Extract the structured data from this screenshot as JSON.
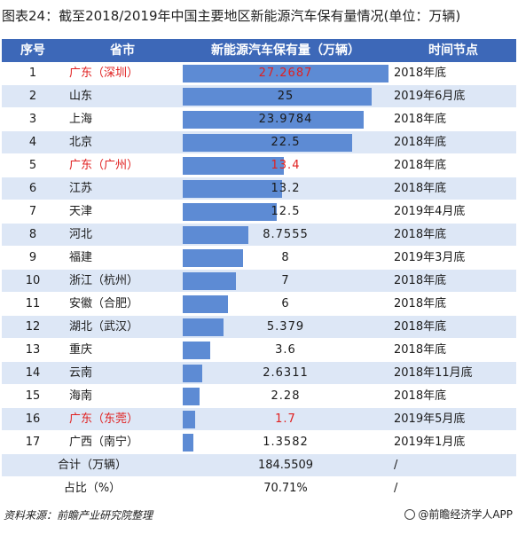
{
  "title": "图表24：截至2018/2019年中国主要地区新能源汽车保有量情况(单位：万辆)",
  "headers": {
    "rank": "序号",
    "province": "省市",
    "value": "新能源汽车保有量（万辆）",
    "time": "时间节点"
  },
  "chart_data": {
    "type": "bar",
    "title": "图表24：截至2018/2019年中国主要地区新能源汽车保有量情况(单位：万辆)",
    "xlabel": "省市",
    "ylabel": "新能源汽车保有量（万辆）",
    "categories": [
      "广东（深圳）",
      "山东",
      "上海",
      "北京",
      "广东（广州）",
      "江苏",
      "天津",
      "河北",
      "福建",
      "浙江（杭州）",
      "安徽（合肥）",
      "湖北（武汉）",
      "重庆",
      "云南",
      "海南",
      "广东（东莞）",
      "广西（南宁）"
    ],
    "values": [
      27.2687,
      25,
      23.9784,
      22.5,
      13.4,
      13.2,
      12.5,
      8.7555,
      8,
      7,
      6,
      5.379,
      3.6,
      2.6311,
      2.28,
      1.7,
      1.3582
    ],
    "value_labels": [
      "27.2687",
      "25",
      "23.9784",
      "22.5",
      "13.4",
      "13.2",
      "12.5",
      "8.7555",
      "8",
      "7",
      "6",
      "5.379",
      "3.6",
      "2.6311",
      "2.28",
      "1.7",
      "1.3582"
    ],
    "ranks": [
      "1",
      "2",
      "3",
      "4",
      "5",
      "6",
      "7",
      "8",
      "9",
      "10",
      "11",
      "12",
      "13",
      "14",
      "15",
      "16",
      "17"
    ],
    "time_nodes": [
      "2018年底",
      "2019年6月底",
      "2018年底",
      "2018年底",
      "2018年底",
      "2018年底",
      "2019年4月底",
      "2018年底",
      "2019年3月底",
      "2018年底",
      "2018年底",
      "2018年底",
      "2018年底",
      "2018年11月底",
      "2018年底",
      "2019年5月底",
      "2019年1月底"
    ],
    "highlight": [
      true,
      false,
      false,
      false,
      true,
      false,
      false,
      false,
      false,
      false,
      false,
      false,
      false,
      false,
      false,
      true,
      false
    ],
    "highlight_color": "#e02020",
    "bar_color": "#5d8bd4",
    "xlim": [
      0,
      27.2687
    ]
  },
  "total": {
    "label": "合计（万辆）",
    "value": "184.5509",
    "time": "/"
  },
  "share": {
    "label": "占比（%）",
    "value": "70.71%",
    "time": "/"
  },
  "source": "资料来源：前瞻产业研究院整理",
  "credit": "@前瞻经济学人APP"
}
